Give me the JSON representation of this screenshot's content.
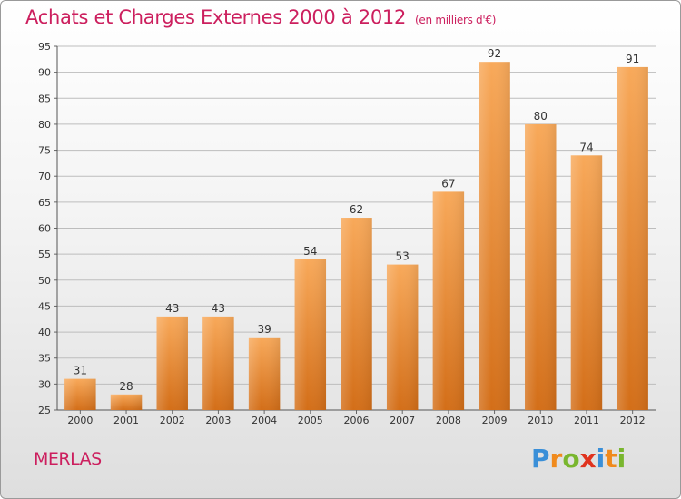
{
  "title": "Achats et Charges Externes 2000 à 2012",
  "unit": "(en milliers d'€)",
  "place": "MERLAS",
  "logo": {
    "letters": [
      "P",
      "r",
      "o",
      "x",
      "i",
      "t",
      "i"
    ],
    "colors": [
      "#3a8fd8",
      "#f08a1c",
      "#79b62e",
      "#e0331e",
      "#3a8fd8",
      "#f08a1c",
      "#79b62e"
    ]
  },
  "colors": {
    "bar_light": "#f7a654",
    "bar_dark": "#d9701a",
    "text": "#cc1f5e",
    "axis": "#333333"
  },
  "chart_data": {
    "type": "bar",
    "title": "Achats et Charges Externes 2000 à 2012",
    "unit": "(en milliers d'€)",
    "categories": [
      "2000",
      "2001",
      "2002",
      "2003",
      "2004",
      "2005",
      "2006",
      "2007",
      "2008",
      "2009",
      "2010",
      "2011",
      "2012"
    ],
    "values": [
      31,
      28,
      43,
      43,
      39,
      54,
      62,
      53,
      67,
      92,
      80,
      74,
      91
    ],
    "ylim": [
      25,
      95
    ],
    "yticks": [
      25,
      30,
      35,
      40,
      45,
      50,
      55,
      60,
      65,
      70,
      75,
      80,
      85,
      90,
      95
    ],
    "grid": true,
    "data_labels": true
  }
}
